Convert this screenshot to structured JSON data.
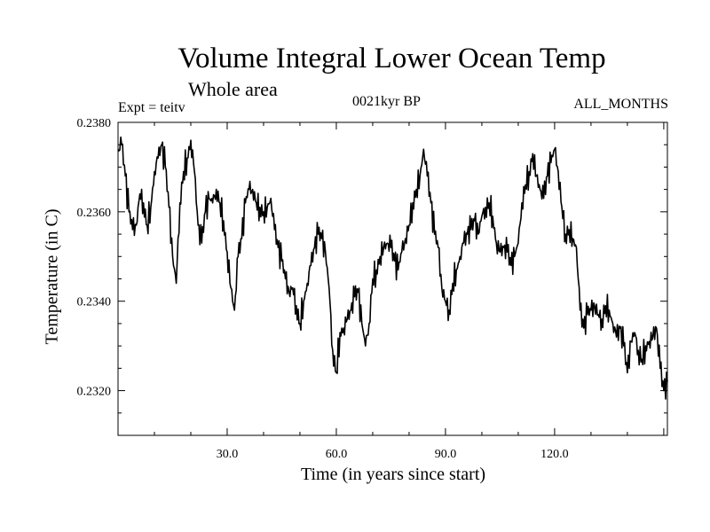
{
  "chart_data": {
    "type": "line",
    "title": "Volume Integral Lower Ocean Temp",
    "subtitle": "Whole area",
    "experiment_label": "Expt = teitv",
    "period_label": "0021kyr BP",
    "months_label": "ALL_MONTHS",
    "xlabel": "Time (in years since start)",
    "ylabel": "Temperature (in C)",
    "xlim": [
      0,
      151
    ],
    "ylim": [
      0.231,
      0.238
    ],
    "xticks": [
      {
        "value": 30,
        "label": "30.0"
      },
      {
        "value": 60,
        "label": "60.0"
      },
      {
        "value": 90,
        "label": "90.0"
      },
      {
        "value": 120,
        "label": "120.0"
      }
    ],
    "yticks": [
      {
        "value": 0.232,
        "label": "0.2320"
      },
      {
        "value": 0.234,
        "label": "0.2340"
      },
      {
        "value": 0.236,
        "label": "0.2360"
      },
      {
        "value": 0.238,
        "label": "0.2380"
      }
    ],
    "series": [
      {
        "name": "Temperature",
        "color": "#000000",
        "x": [
          0,
          1,
          2,
          3,
          4,
          5,
          6,
          7,
          8,
          9,
          10,
          11,
          12,
          13,
          14,
          15,
          16,
          17,
          18,
          19,
          20,
          21,
          22,
          23,
          24,
          25,
          26,
          27,
          28,
          29,
          30,
          31,
          32,
          33,
          34,
          35,
          36,
          37,
          38,
          39,
          40,
          41,
          42,
          43,
          44,
          45,
          46,
          47,
          48,
          49,
          50,
          51,
          52,
          53,
          54,
          55,
          56,
          57,
          58,
          59,
          60,
          61,
          62,
          63,
          64,
          65,
          66,
          67,
          68,
          69,
          70,
          71,
          72,
          73,
          74,
          75,
          76,
          77,
          78,
          79,
          80,
          81,
          82,
          83,
          84,
          85,
          86,
          87,
          88,
          89,
          90,
          91,
          92,
          93,
          94,
          95,
          96,
          97,
          98,
          99,
          100,
          101,
          102,
          103,
          104,
          105,
          106,
          107,
          108,
          109,
          110,
          111,
          112,
          113,
          114,
          115,
          116,
          117,
          118,
          119,
          120,
          121,
          122,
          123,
          124,
          125,
          126,
          127,
          128,
          129,
          130,
          131,
          132,
          133,
          134,
          135,
          136,
          137,
          138,
          139,
          140,
          141,
          142,
          143,
          144,
          145,
          146,
          147,
          148,
          149,
          150,
          151
        ],
        "values": [
          0.2374,
          0.2375,
          0.2368,
          0.236,
          0.2356,
          0.2357,
          0.2364,
          0.2362,
          0.2357,
          0.2361,
          0.2369,
          0.2372,
          0.2375,
          0.237,
          0.2361,
          0.235,
          0.2344,
          0.2362,
          0.2369,
          0.2372,
          0.2376,
          0.2369,
          0.2357,
          0.2353,
          0.236,
          0.2363,
          0.2362,
          0.2365,
          0.2362,
          0.2358,
          0.2351,
          0.2343,
          0.2338,
          0.235,
          0.2354,
          0.2362,
          0.2365,
          0.2365,
          0.2362,
          0.2361,
          0.236,
          0.2361,
          0.2363,
          0.2356,
          0.2352,
          0.2349,
          0.2345,
          0.2342,
          0.2343,
          0.2339,
          0.2335,
          0.234,
          0.2344,
          0.2348,
          0.2352,
          0.2355,
          0.2354,
          0.2351,
          0.2343,
          0.2329,
          0.2324,
          0.2333,
          0.2334,
          0.2336,
          0.2338,
          0.2341,
          0.2342,
          0.2335,
          0.233,
          0.2335,
          0.2345,
          0.2347,
          0.235,
          0.2352,
          0.2353,
          0.2352,
          0.2349,
          0.2347,
          0.2351,
          0.2354,
          0.2357,
          0.2362,
          0.2365,
          0.2368,
          0.2374,
          0.2368,
          0.2362,
          0.2355,
          0.2352,
          0.2343,
          0.234,
          0.2338,
          0.2344,
          0.2347,
          0.235,
          0.2353,
          0.2355,
          0.2356,
          0.2358,
          0.2355,
          0.2359,
          0.2361,
          0.2362,
          0.2359,
          0.2353,
          0.2351,
          0.2352,
          0.2351,
          0.2348,
          0.235,
          0.2353,
          0.2362,
          0.2366,
          0.2369,
          0.2373,
          0.2368,
          0.2365,
          0.2363,
          0.2368,
          0.2371,
          0.2374,
          0.2369,
          0.2361,
          0.2355,
          0.2356,
          0.2354,
          0.2352,
          0.2338,
          0.2334,
          0.2337,
          0.2338,
          0.2339,
          0.2337,
          0.2336,
          0.2339,
          0.2338,
          0.2335,
          0.2332,
          0.2334,
          0.233,
          0.2324,
          0.2331,
          0.2333,
          0.2329,
          0.2327,
          0.233,
          0.2331,
          0.2332,
          0.2334,
          0.2325,
          0.232,
          0.2322
        ]
      }
    ]
  }
}
